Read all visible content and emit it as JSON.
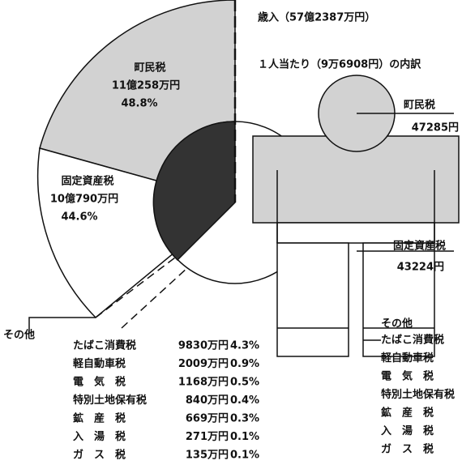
{
  "header": {
    "title": "歳入（57億2387万円）",
    "subtitle": "１人当たり（9万6908円）の内訳"
  },
  "pie": {
    "segments": [
      {
        "name": "町民税",
        "amount": "11億258万円",
        "percent": "48.8%"
      },
      {
        "name": "固定資産税",
        "amount": "10億790万円",
        "percent": "44.6%"
      }
    ],
    "other_label": "その他",
    "other_items": [
      {
        "name": "たばこ消費税",
        "amount": "9830万円",
        "percent": "4.3%"
      },
      {
        "name": "軽自動車税",
        "amount": "2009万円",
        "percent": "0.9%"
      },
      {
        "name": "電　気　税",
        "amount": "1168万円",
        "percent": "0.5%"
      },
      {
        "name": "特別土地保有税",
        "amount": "840万円",
        "percent": "0.4%"
      },
      {
        "name": "鉱　産　税",
        "amount": "669万円",
        "percent": "0.3%"
      },
      {
        "name": "入　湯　税",
        "amount": "271万円",
        "percent": "0.1%"
      },
      {
        "name": "ガ　ス　税",
        "amount": "135万円",
        "percent": "0.1%"
      }
    ]
  },
  "per_capita": {
    "items": [
      {
        "name": "町民税",
        "amount": "47285円"
      },
      {
        "name": "固定資産税",
        "amount": "43224円"
      }
    ],
    "other_label": "その他",
    "other_items": [
      "たばこ消費税",
      "軽自動車税",
      "電　気　税",
      "特別土地保有税",
      "鉱　産　税",
      "入　湯　税",
      "ガ　ス　税"
    ]
  }
}
